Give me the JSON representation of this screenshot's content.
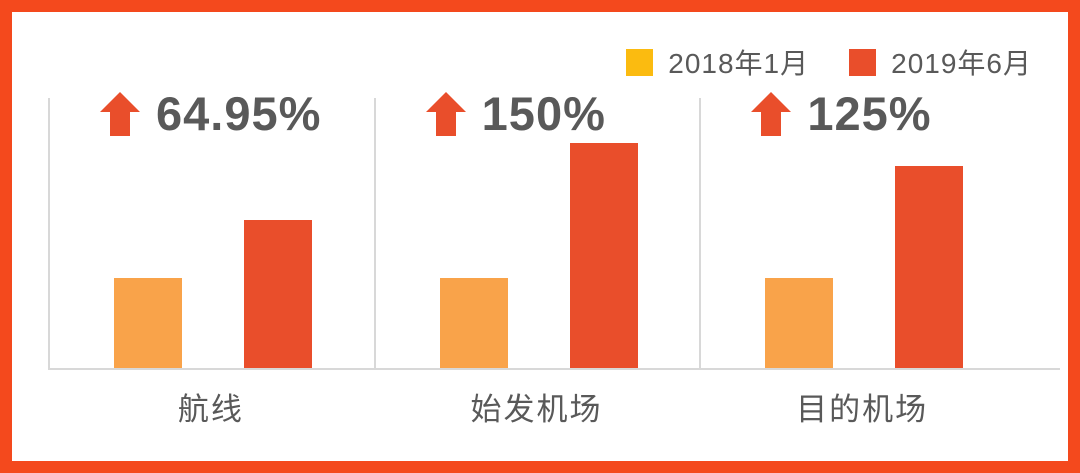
{
  "frame": {
    "border_color": "#F4491D",
    "background": "#FFFFFF"
  },
  "legend": {
    "items": [
      {
        "label": "2018年1月",
        "color": "#FBBB10"
      },
      {
        "label": "2019年6月",
        "color": "#E94E2B"
      }
    ]
  },
  "chart_data": {
    "type": "bar",
    "title": "",
    "xlabel": "",
    "ylabel": "",
    "categories": [
      "航线",
      "始发机场",
      "目的机场"
    ],
    "series": [
      {
        "name": "2018年1月",
        "color": "#F9A34A",
        "values": [
          100,
          100,
          100
        ]
      },
      {
        "name": "2019年6月",
        "color": "#E94E2B",
        "values": [
          164.95,
          250,
          225
        ]
      }
    ],
    "growth_labels": [
      "64.95%",
      "150%",
      "125%"
    ],
    "ylim": [
      0,
      250
    ],
    "grid": "panel-dividers-and-baseline-only",
    "legend_position": "top-right",
    "annotations": "red block up-arrow next to each growth percentage"
  },
  "colors": {
    "text_gray": "#595959",
    "gridline": "#D8D8D8",
    "arrow": "#E94E2B"
  }
}
